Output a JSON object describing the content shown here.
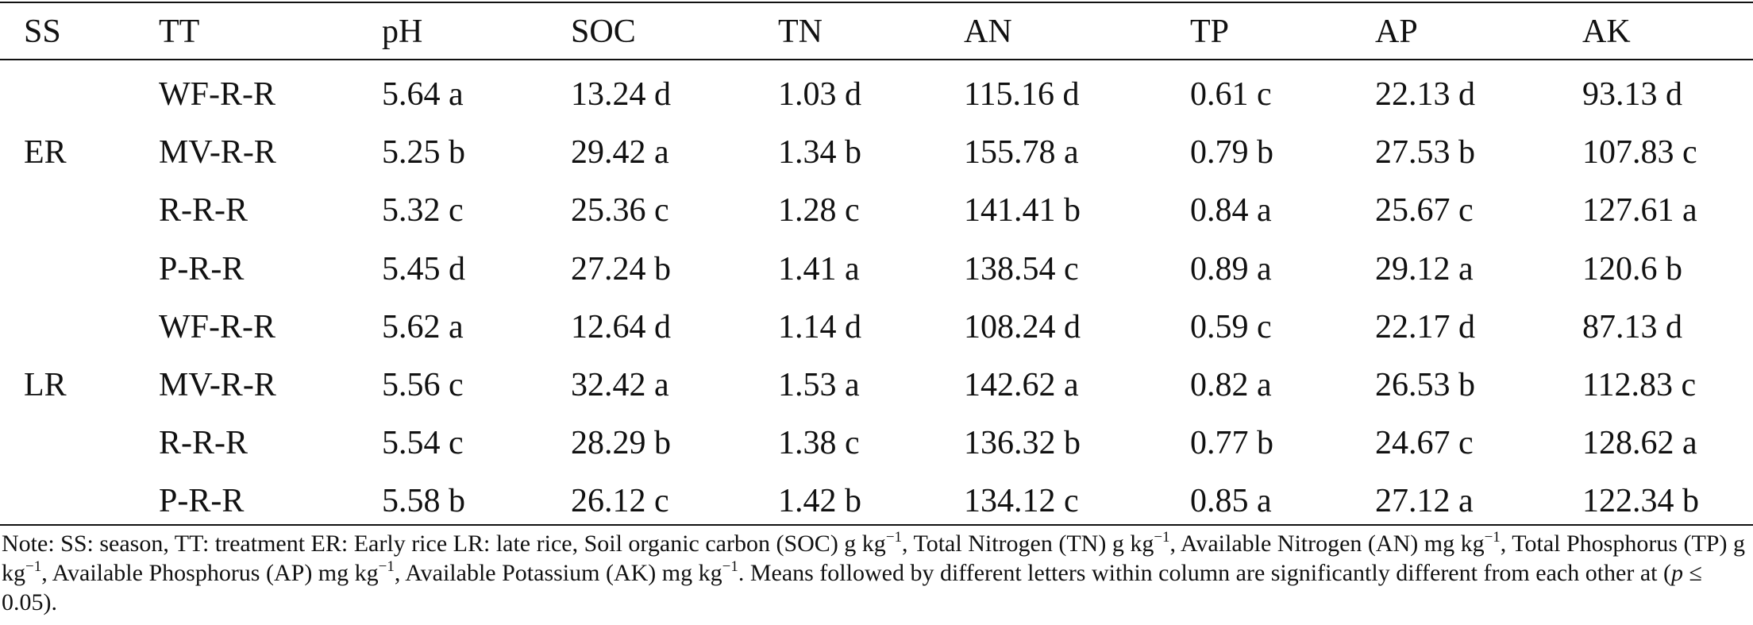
{
  "table": {
    "headers": [
      "SS",
      "TT",
      "pH",
      "SOC",
      "TN",
      "AN",
      "TP",
      "AP",
      "AK"
    ],
    "seasons": [
      "ER",
      "LR"
    ],
    "rows": [
      [
        "WF-R-R",
        "5.64 a",
        "13.24 d",
        "1.03 d",
        "115.16 d",
        "0.61 c",
        "22.13 d",
        "93.13 d"
      ],
      [
        "MV-R-R",
        "5.25 b",
        "29.42 a",
        "1.34 b",
        "155.78 a",
        "0.79 b",
        "27.53 b",
        "107.83 c"
      ],
      [
        "R-R-R",
        "5.32 c",
        "25.36 c",
        "1.28 c",
        "141.41 b",
        "0.84 a",
        "25.67 c",
        "127.61 a"
      ],
      [
        "P-R-R",
        "5.45 d",
        "27.24 b",
        "1.41 a",
        "138.54 c",
        "0.89 a",
        "29.12 a",
        "120.6 b"
      ],
      [
        "WF-R-R",
        "5.62 a",
        "12.64 d",
        "1.14 d",
        "108.24 d",
        "0.59 c",
        "22.17 d",
        "87.13 d"
      ],
      [
        "MV-R-R",
        "5.56 c",
        "32.42 a",
        "1.53 a",
        "142.62 a",
        "0.82 a",
        "26.53 b",
        "112.83 c"
      ],
      [
        "R-R-R",
        "5.54 c",
        "28.29 b",
        "1.38 c",
        "136.32 b",
        "0.77 b",
        "24.67 c",
        "128.62 a"
      ],
      [
        "P-R-R",
        "5.58 b",
        "26.12 c",
        "1.42 b",
        "134.12 c",
        "0.85 a",
        "27.12 a",
        "122.34 b"
      ]
    ]
  },
  "note": {
    "p1": "Note: SS: season, TT: treatment ER: Early rice LR: late rice, Soil organic carbon (SOC) g kg",
    "sup1": "−1",
    "p2": ", Total Nitrogen (TN) g kg",
    "sup2": "−1",
    "p3": ", Available Nitrogen (AN) mg kg",
    "sup3": "−1",
    "p4": ", Total Phosphorus (TP) g kg",
    "sup4": "−1",
    "p5": ", Available Phosphorus (AP) mg kg",
    "sup5": "−1",
    "p6": ", Available Potassium (AK) mg kg",
    "sup6": "−1",
    "p7": ". Means followed by different letters within column are significantly different from each other at (",
    "p_var": "p",
    "p8": " ≤ 0.05)."
  }
}
